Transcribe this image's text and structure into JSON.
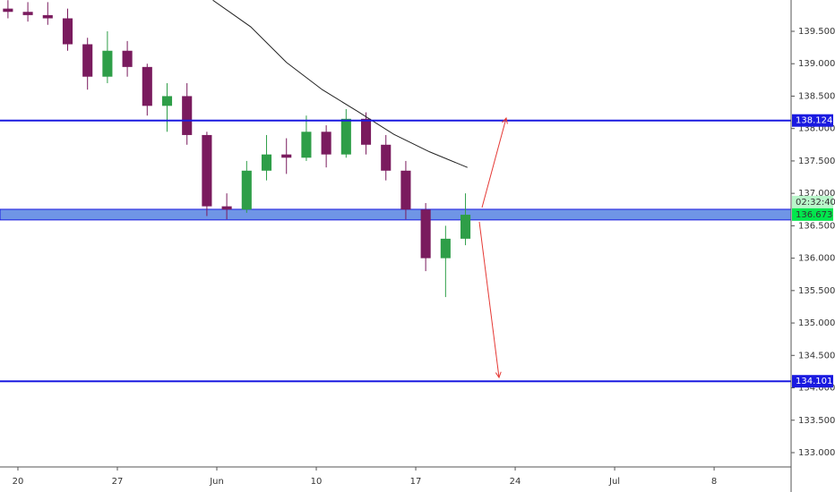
{
  "chart_data": {
    "type": "candlestick",
    "x": [
      -0.5,
      0.5,
      1.5,
      2.5,
      3.5,
      4.5,
      5.5,
      6.5,
      7.5,
      8.5,
      9.5,
      10.5,
      11.5,
      12.5,
      13.5,
      14.5,
      15.5,
      16.5,
      17.5,
      18.5,
      19.5,
      20.5,
      21.5,
      22.5
    ],
    "open": [
      139.85,
      139.8,
      139.75,
      139.7,
      139.3,
      138.8,
      139.2,
      138.95,
      138.35,
      138.5,
      137.9,
      136.8,
      136.75,
      137.35,
      137.6,
      137.55,
      137.95,
      137.6,
      138.15,
      137.75,
      137.35,
      136.75,
      136.0,
      136.3
    ],
    "high": [
      139.98,
      139.95,
      139.95,
      139.85,
      139.4,
      139.5,
      139.35,
      139.0,
      138.7,
      138.7,
      137.95,
      137.0,
      137.5,
      137.9,
      137.85,
      138.2,
      138.05,
      138.3,
      138.25,
      137.9,
      137.5,
      136.85,
      136.5,
      137.0
    ],
    "low": [
      139.7,
      139.65,
      139.6,
      139.2,
      138.6,
      138.7,
      138.8,
      138.2,
      137.95,
      137.75,
      136.65,
      136.6,
      136.7,
      137.2,
      137.3,
      137.5,
      137.4,
      137.55,
      137.6,
      137.2,
      136.6,
      135.8,
      135.4,
      136.2
    ],
    "close": [
      139.8,
      139.75,
      139.7,
      139.3,
      138.8,
      139.2,
      138.95,
      138.35,
      138.5,
      137.9,
      136.8,
      136.75,
      137.35,
      137.6,
      137.55,
      137.95,
      137.6,
      138.15,
      137.75,
      137.35,
      136.75,
      136.0,
      136.3,
      136.67
    ],
    "up_color": "#2e9e48",
    "down_color": "#7a1b5e",
    "ma": {
      "x": [
        9.8,
        11.7,
        13.5,
        15.3,
        17.1,
        18.9,
        20.7,
        22.6
      ],
      "values": [
        139.98,
        139.57,
        139.02,
        138.6,
        138.26,
        137.91,
        137.64,
        137.4
      ],
      "color": "#222222"
    },
    "levels": [
      {
        "value": 138.124,
        "label": "138.124"
      },
      {
        "value": 134.101,
        "label": "134.101"
      }
    ],
    "level_color": "#1a1ae0",
    "zone": [
      136.59,
      136.754
    ],
    "zone_color": "#6f95e6",
    "last_price": {
      "value": 136.673,
      "label": "136.673"
    },
    "countdown": "02:32:40",
    "xlim": [
      -0.9,
      38.87
    ],
    "ylim": [
      132.779,
      139.983
    ],
    "xticks": [
      {
        "value": 0,
        "label": "20"
      },
      {
        "value": 5,
        "label": "27"
      },
      {
        "value": 10,
        "label": "Jun"
      },
      {
        "value": 15,
        "label": "10"
      },
      {
        "value": 20,
        "label": "17"
      },
      {
        "value": 25,
        "label": "24"
      },
      {
        "value": 30,
        "label": "Jul"
      },
      {
        "value": 35,
        "label": "8"
      }
    ],
    "yticks": [
      {
        "value": 133,
        "label": "133.000"
      },
      {
        "value": 133.5,
        "label": "133.500"
      },
      {
        "value": 134,
        "label": "134.000"
      },
      {
        "value": 134.5,
        "label": "134.500"
      },
      {
        "value": 135,
        "label": "135.000"
      },
      {
        "value": 135.5,
        "label": "135.500"
      },
      {
        "value": 136,
        "label": "136.000"
      },
      {
        "value": 136.5,
        "label": "136.500"
      },
      {
        "value": 137,
        "label": "137.000"
      },
      {
        "value": 137.5,
        "label": "137.500"
      },
      {
        "value": 138,
        "label": "138.000"
      },
      {
        "value": 138.5,
        "label": "138.500"
      },
      {
        "value": 139,
        "label": "139.000"
      },
      {
        "value": 139.5,
        "label": "139.500"
      }
    ]
  }
}
